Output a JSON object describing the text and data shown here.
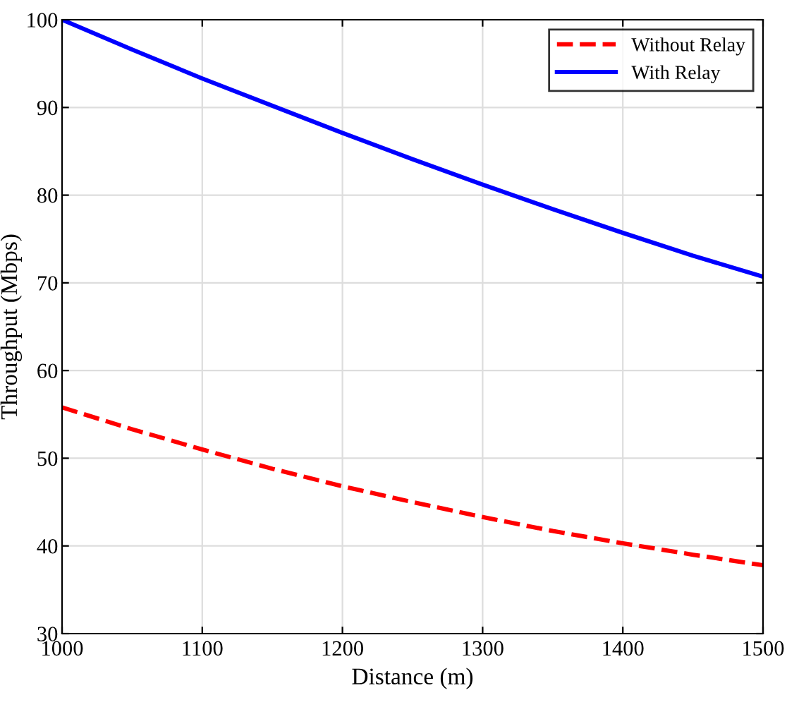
{
  "chart_data": {
    "type": "line",
    "xlabel": "Distance (m)",
    "ylabel": "Throughput (Mbps)",
    "x": [
      1000,
      1050,
      1100,
      1150,
      1200,
      1250,
      1300,
      1350,
      1400,
      1450,
      1500
    ],
    "series": [
      {
        "name": "Without Relay",
        "color": "#ff0000",
        "line_style": "dashed",
        "values": [
          55.8,
          53.3,
          51.0,
          48.8,
          46.8,
          45.0,
          43.3,
          41.7,
          40.3,
          39.0,
          37.8
        ]
      },
      {
        "name": "With Relay",
        "color": "#0000ff",
        "line_style": "solid",
        "values": [
          100,
          96.6,
          93.3,
          90.2,
          87.1,
          84.1,
          81.2,
          78.4,
          75.7,
          73.1,
          70.7
        ]
      }
    ],
    "xlim": [
      1000,
      1500
    ],
    "ylim": [
      30,
      100
    ],
    "xticks": [
      1000,
      1100,
      1200,
      1300,
      1400,
      1500
    ],
    "yticks": [
      30,
      40,
      50,
      60,
      70,
      80,
      90,
      100
    ],
    "grid": true,
    "legend": "top right",
    "marker": "none"
  }
}
